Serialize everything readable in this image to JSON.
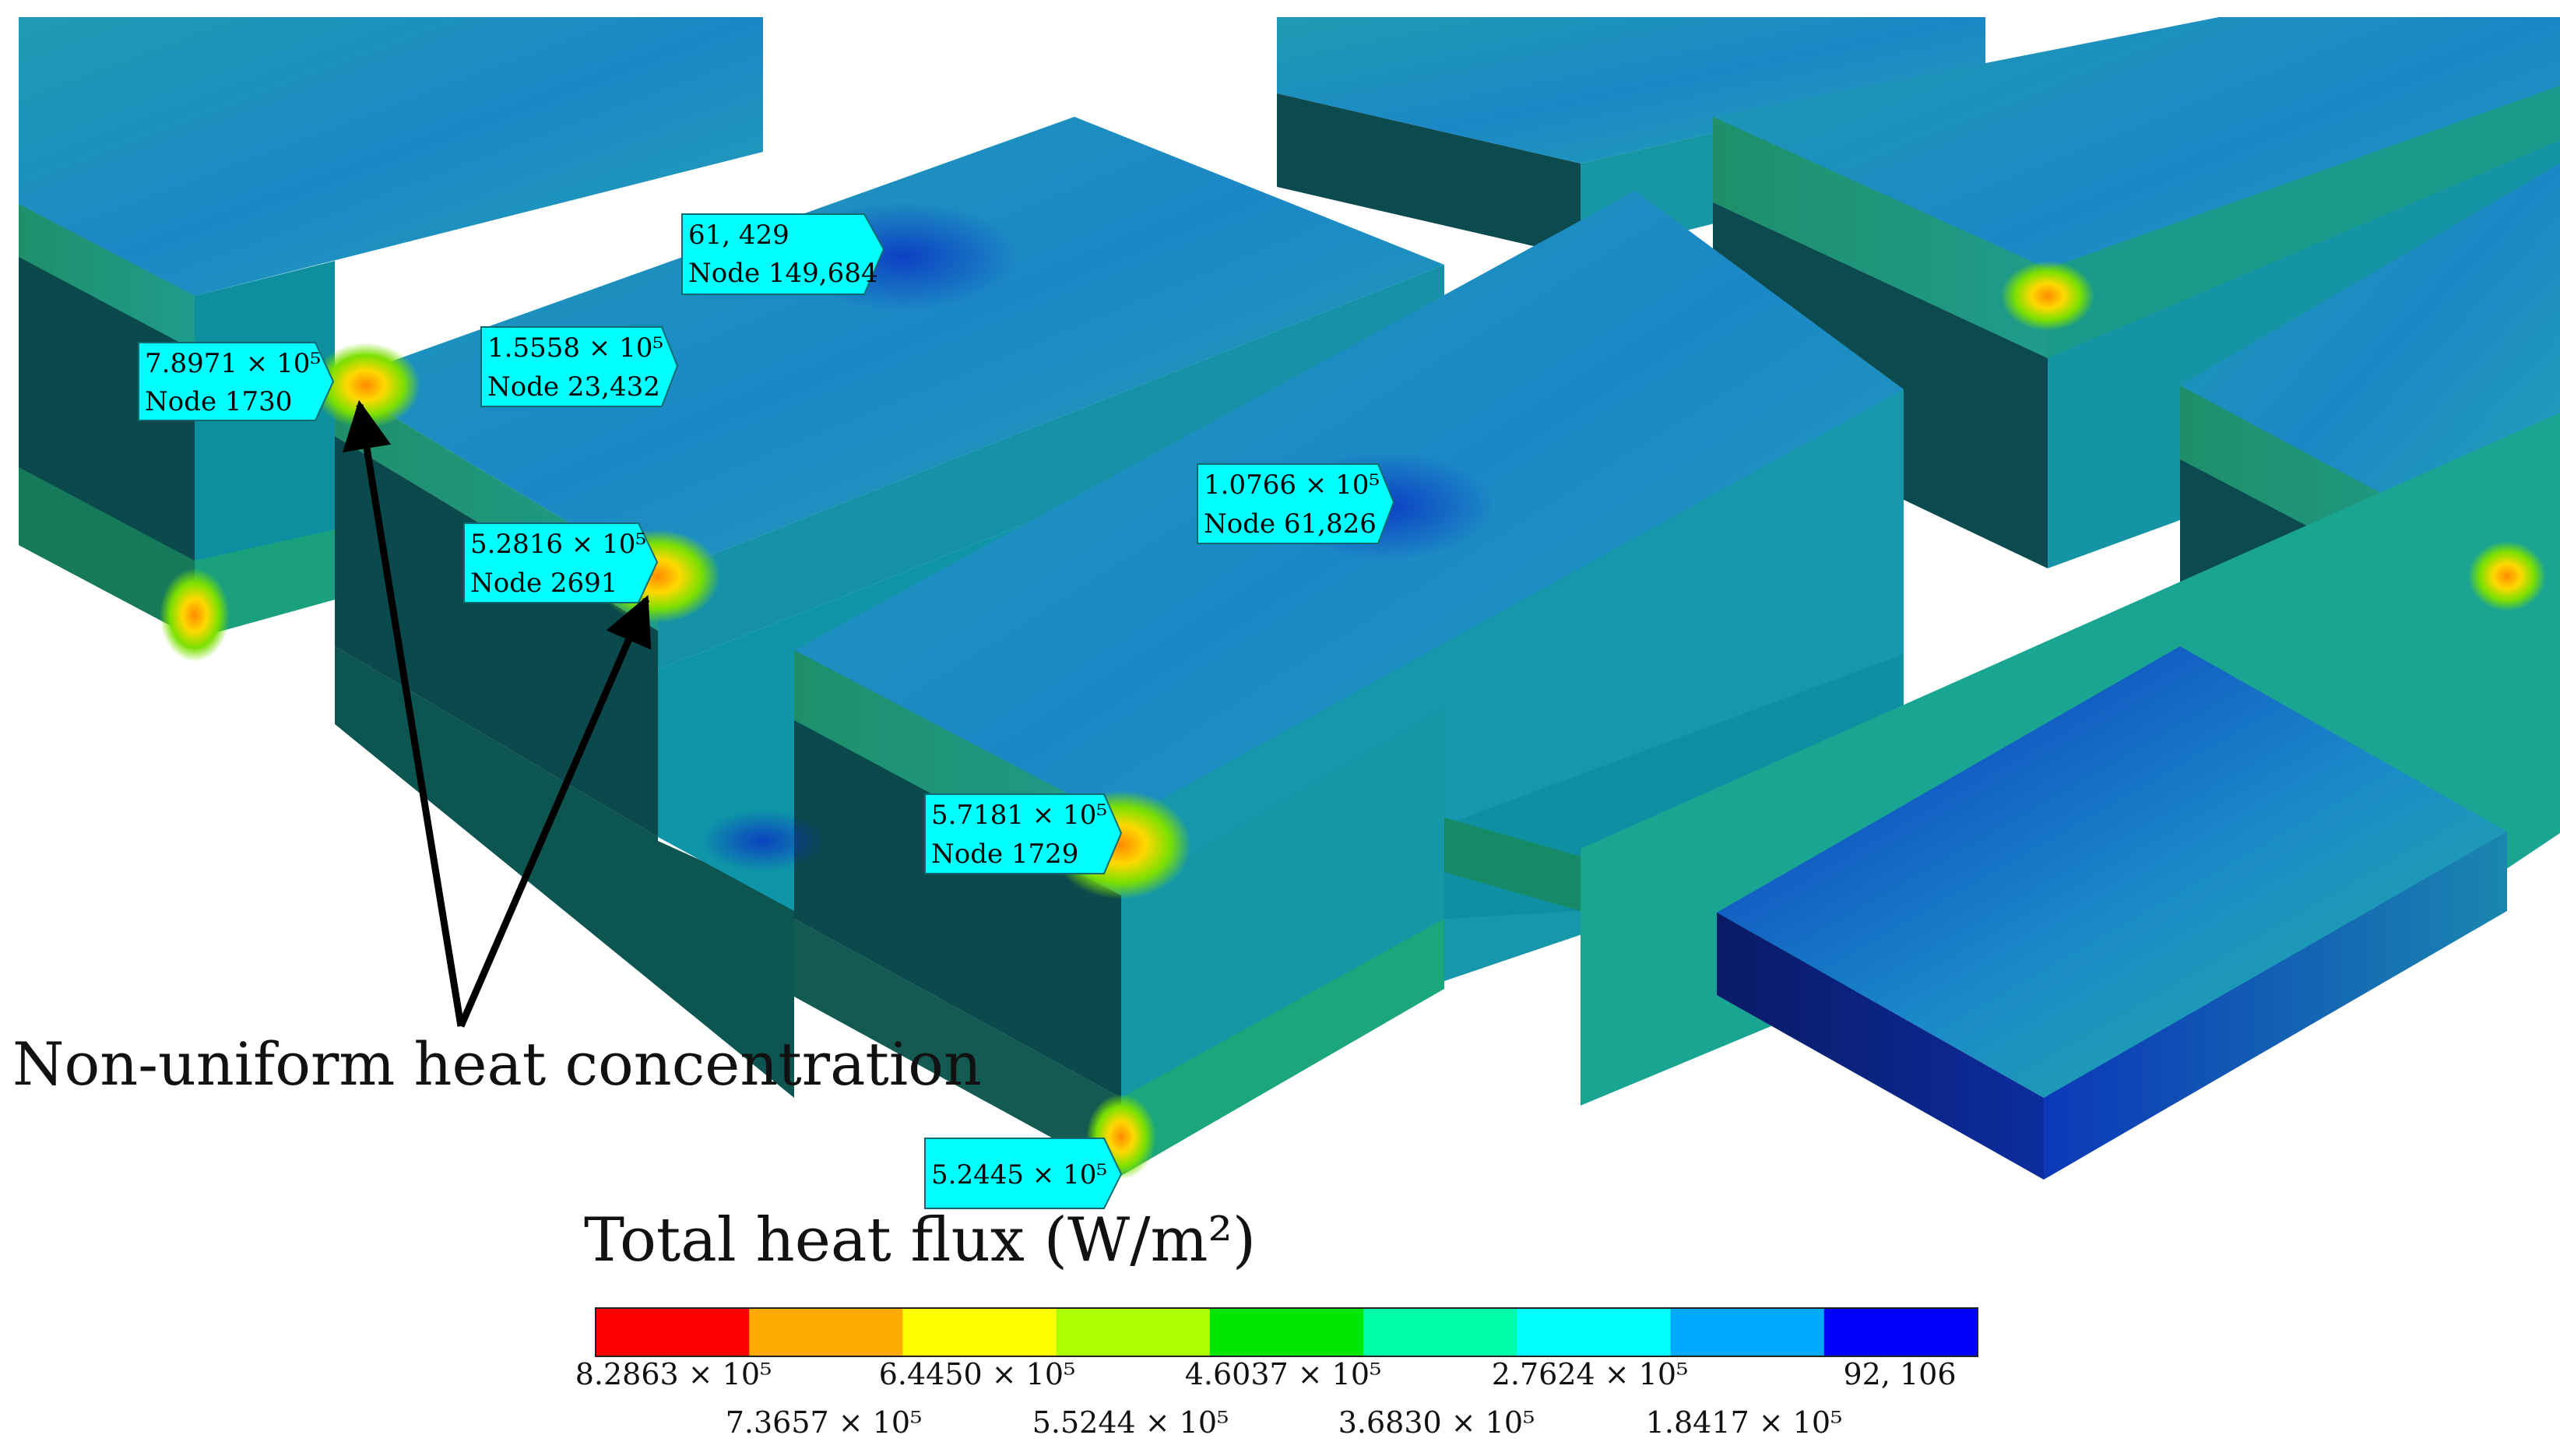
{
  "annotation": {
    "arrow_caption": "Non-uniform heat concentration"
  },
  "probes": [
    {
      "line1": "61, 429",
      "line2": "Node 149,684"
    },
    {
      "line1": "7.8971 × 10⁵",
      "line2": "Node 1730"
    },
    {
      "line1": "1.5558 × 10⁵",
      "line2": "Node 23,432"
    },
    {
      "line1": "5.2816 × 10⁵",
      "line2": "Node 2691"
    },
    {
      "line1": "1.0766 × 10⁵",
      "line2": "Node 61,826"
    },
    {
      "line1": "5.7181 × 10⁵",
      "line2": "Node 1729"
    },
    {
      "line1": "5.2445 × 10⁵",
      "line2": ""
    }
  ],
  "legend": {
    "title": "Total heat flux (W/m²)",
    "colors": [
      "#ff0000",
      "#ffaa00",
      "#ffff00",
      "#aaff00",
      "#00e600",
      "#00ffaa",
      "#00ffff",
      "#00aaff",
      "#0000ff"
    ],
    "ticks_top": [
      "8.2863 × 10⁵",
      "6.4450 × 10⁵",
      "4.6037 × 10⁵",
      "2.7624 × 10⁵",
      "92, 106"
    ],
    "ticks_bottom": [
      "7.3657 × 10⁵",
      "5.5244 × 10⁵",
      "3.6830 × 10⁵",
      "1.8417 × 10⁵"
    ]
  }
}
